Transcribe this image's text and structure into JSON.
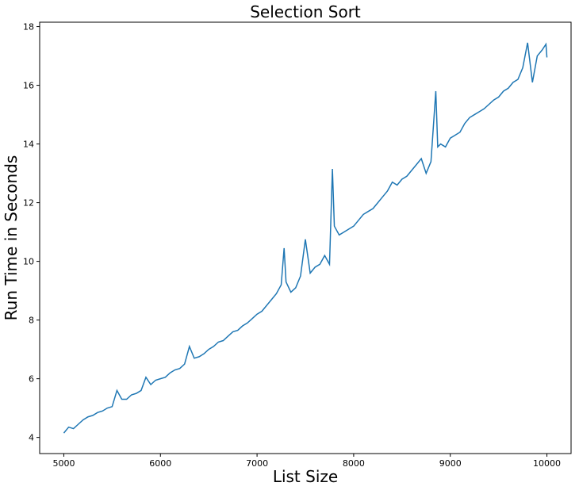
{
  "chart_data": {
    "type": "line",
    "title": "Selection Sort",
    "x_label": "List Size",
    "y_label": "Run Time in Seconds",
    "x": [
      5000,
      5050,
      5100,
      5150,
      5200,
      5250,
      5300,
      5350,
      5400,
      5450,
      5500,
      5550,
      5600,
      5650,
      5700,
      5750,
      5800,
      5850,
      5900,
      5950,
      6000,
      6050,
      6100,
      6150,
      6200,
      6250,
      6300,
      6350,
      6400,
      6450,
      6500,
      6550,
      6600,
      6650,
      6700,
      6750,
      6800,
      6850,
      6900,
      6950,
      7000,
      7050,
      7100,
      7150,
      7200,
      7250,
      7280,
      7300,
      7350,
      7400,
      7450,
      7500,
      7550,
      7600,
      7650,
      7700,
      7750,
      7780,
      7800,
      7850,
      7900,
      7950,
      8000,
      8050,
      8100,
      8150,
      8200,
      8250,
      8300,
      8350,
      8400,
      8450,
      8500,
      8550,
      8600,
      8650,
      8700,
      8750,
      8800,
      8850,
      8870,
      8900,
      8950,
      9000,
      9050,
      9100,
      9150,
      9200,
      9250,
      9300,
      9350,
      9400,
      9450,
      9500,
      9550,
      9600,
      9650,
      9700,
      9750,
      9800,
      9850,
      9900,
      9950,
      9990,
      10000
    ],
    "series": [
      {
        "name": "Run Time",
        "color": "#1f77b4",
        "values": [
          4.15,
          4.35,
          4.3,
          4.45,
          4.6,
          4.7,
          4.75,
          4.85,
          4.9,
          5.0,
          5.05,
          5.6,
          5.3,
          5.3,
          5.45,
          5.5,
          5.6,
          6.05,
          5.8,
          5.95,
          6.0,
          6.05,
          6.2,
          6.3,
          6.35,
          6.5,
          7.1,
          6.7,
          6.75,
          6.85,
          7.0,
          7.1,
          7.25,
          7.3,
          7.45,
          7.6,
          7.65,
          7.8,
          7.9,
          8.05,
          8.2,
          8.3,
          8.5,
          8.7,
          8.9,
          9.2,
          10.45,
          9.3,
          8.95,
          9.1,
          9.5,
          10.75,
          9.6,
          9.8,
          9.9,
          10.2,
          9.9,
          13.15,
          11.2,
          10.9,
          11.0,
          11.1,
          11.2,
          11.4,
          11.6,
          11.7,
          11.8,
          12.0,
          12.2,
          12.4,
          12.7,
          12.6,
          12.8,
          12.9,
          13.1,
          13.3,
          13.5,
          13.0,
          13.4,
          15.8,
          13.9,
          14.0,
          13.9,
          14.2,
          14.3,
          14.4,
          14.7,
          14.9,
          15.0,
          15.1,
          15.2,
          15.35,
          15.5,
          15.6,
          15.8,
          15.9,
          16.1,
          16.2,
          16.6,
          17.45,
          16.1,
          17.0,
          17.2,
          17.4,
          16.95
        ]
      }
    ],
    "xlim": [
      4750,
      10250
    ],
    "xticks": [
      5000,
      6000,
      7000,
      8000,
      9000,
      10000
    ],
    "ylim": [
      3.45,
      18.15
    ],
    "yticks": [
      4,
      6,
      8,
      10,
      12,
      14,
      16,
      18
    ]
  }
}
